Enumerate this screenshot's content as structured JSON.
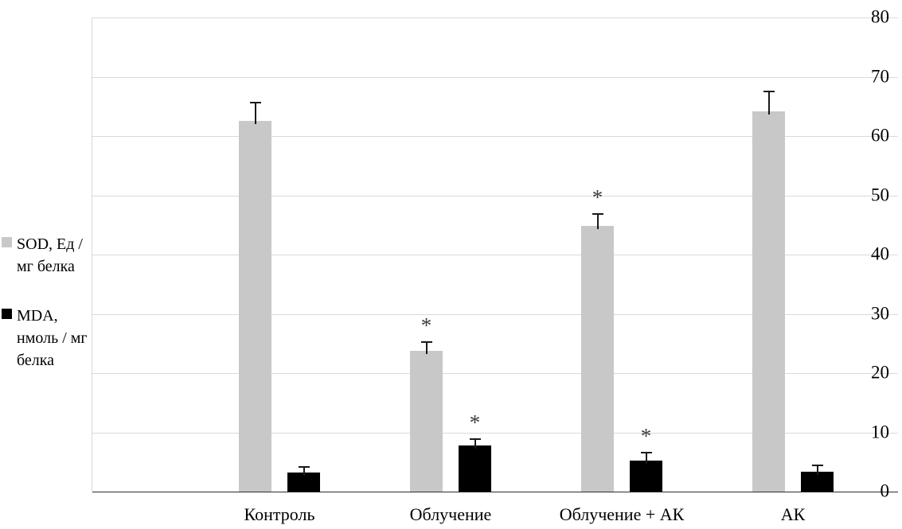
{
  "chart_data": {
    "type": "bar",
    "title": "",
    "xlabel": "",
    "ylabel": "",
    "categories": [
      "Контроль",
      "Облучение",
      "Облучение + АК",
      "АК"
    ],
    "series": [
      {
        "name": "SOD, Ед / мг белка",
        "key": "sod",
        "color": "#c8c8c8",
        "values": [
          62.5,
          23.8,
          44.8,
          64.2
        ],
        "errors": [
          3.3,
          1.6,
          2.2,
          3.4
        ],
        "significant": [
          false,
          true,
          true,
          false
        ]
      },
      {
        "name": "MDA, нмоль / мг белка",
        "key": "mda",
        "color": "#000000",
        "values": [
          3.2,
          7.8,
          5.2,
          3.4
        ],
        "errors": [
          1.1,
          1.2,
          1.5,
          1.2
        ],
        "significant": [
          false,
          true,
          true,
          false
        ]
      }
    ],
    "ylim": [
      0,
      80
    ],
    "ytick_step": 10,
    "yticks": [
      0,
      10,
      20,
      30,
      40,
      50,
      60,
      70,
      80
    ],
    "grid": true,
    "legend_position": "left",
    "significance_marker": "*"
  },
  "legend": {
    "items": [
      {
        "label_lines": [
          "SOD, Ед /",
          "мг белка"
        ],
        "color": "#c8c8c8"
      },
      {
        "label_lines": [
          "MDA,",
          "нмоль / мг",
          "белка"
        ],
        "color": "#000000"
      }
    ]
  }
}
